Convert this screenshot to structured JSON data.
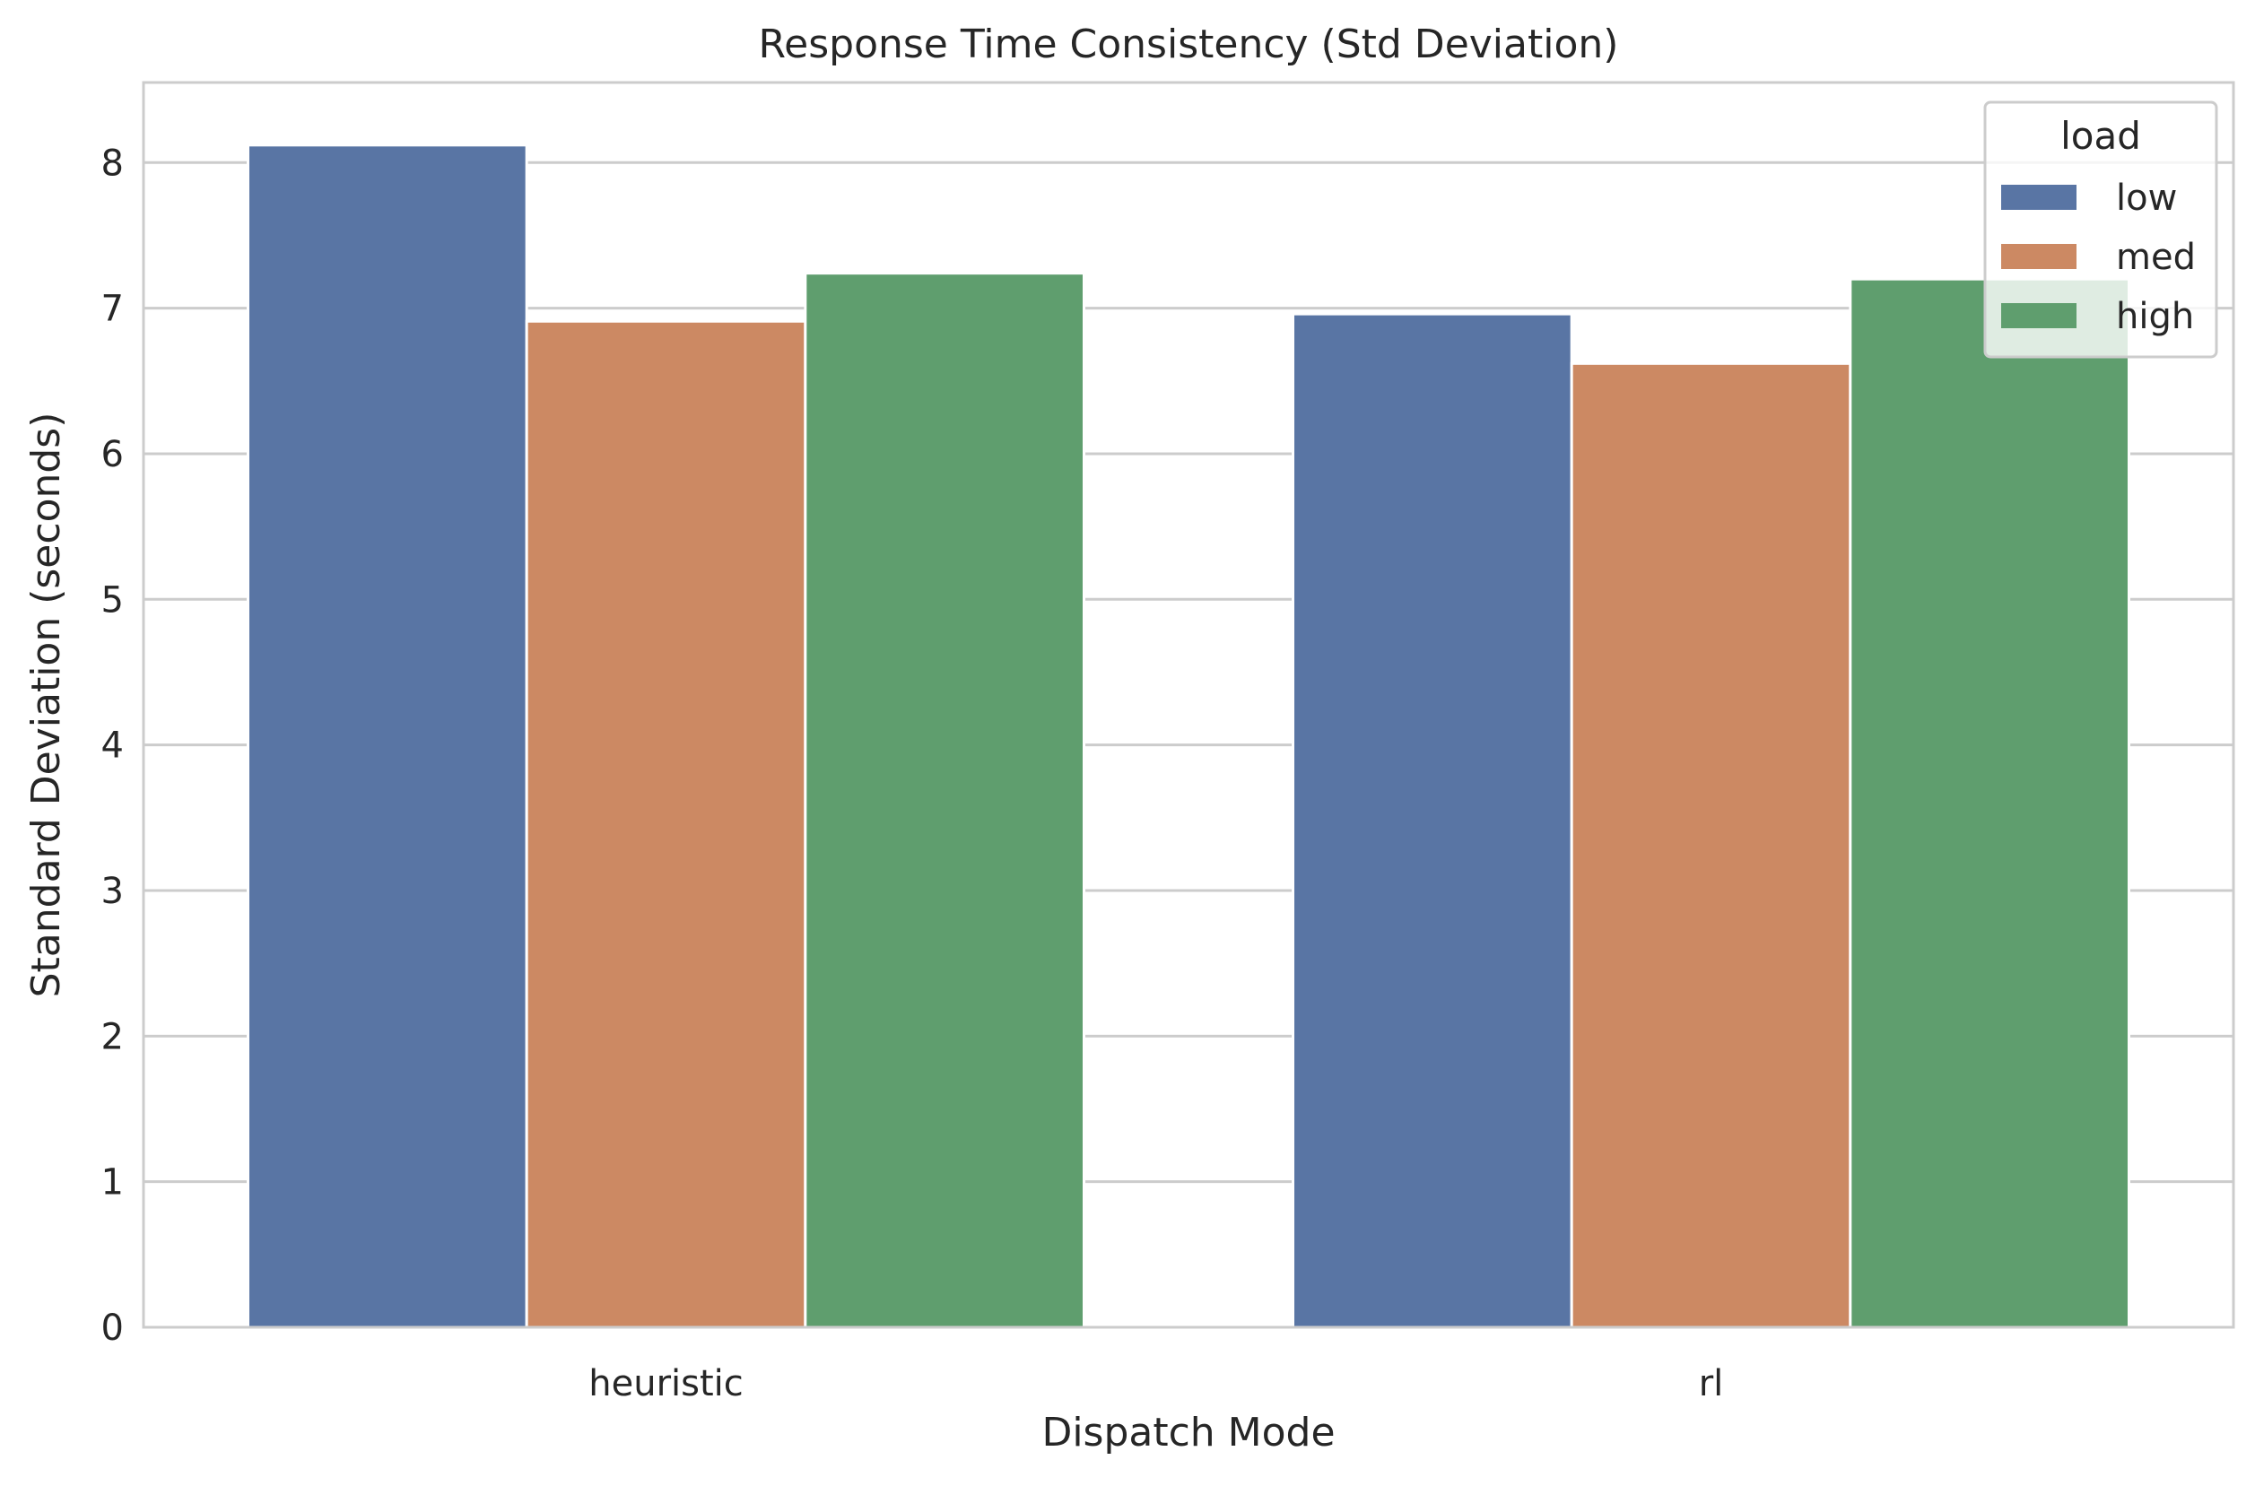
{
  "chart_data": {
    "type": "bar",
    "title": "Response Time Consistency (Std Deviation)",
    "xlabel": "Dispatch Mode",
    "ylabel": "Standard Deviation (seconds)",
    "categories": [
      "heuristic",
      "rl"
    ],
    "series": [
      {
        "name": "low",
        "color": "#5975a4",
        "values": [
          8.12,
          6.96
        ]
      },
      {
        "name": "med",
        "color": "#cc8963",
        "values": [
          6.91,
          6.62
        ]
      },
      {
        "name": "high",
        "color": "#5f9e6e",
        "values": [
          7.24,
          7.2
        ]
      }
    ],
    "ylim": [
      0,
      8.55
    ],
    "yticks": [
      "0",
      "1",
      "2",
      "3",
      "4",
      "5",
      "6",
      "7",
      "8"
    ],
    "grid": true,
    "legend": {
      "title": "load",
      "placement": "top-right"
    }
  }
}
